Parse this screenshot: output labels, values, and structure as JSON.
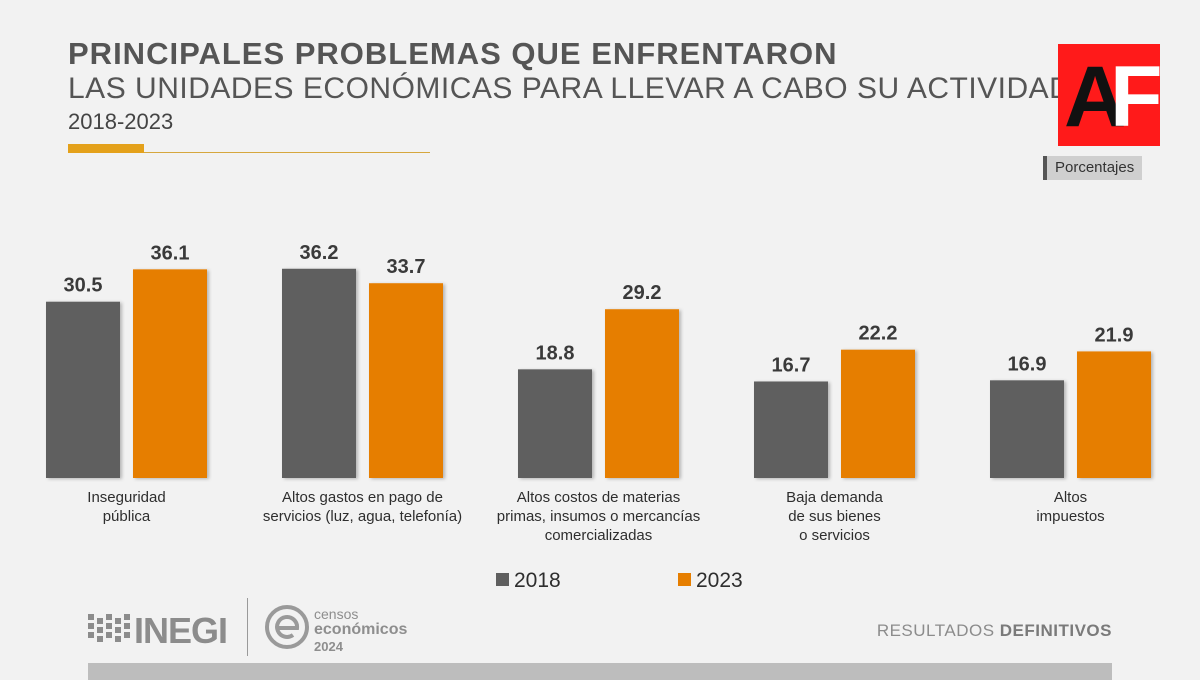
{
  "header": {
    "title_line1": "PRINCIPALES PROBLEMAS QUE ENFRENTARON",
    "title_line2": "LAS UNIDADES ECONÓMICAS PARA LLEVAR A CABO SU ACTIVIDAD",
    "period": "2018-2023",
    "units_label": "Porcentajes"
  },
  "watermark": {
    "text": "AF",
    "colors": {
      "background": "#ff1a1a",
      "a": "#111111",
      "f": "#ffffff"
    }
  },
  "chart_data": {
    "type": "bar",
    "title": "PRINCIPALES PROBLEMAS QUE ENFRENTARON LAS UNIDADES ECONÓMICAS PARA LLEVAR A CABO SU ACTIVIDAD",
    "subtitle": "2018-2023",
    "ylabel": "Porcentajes",
    "ylim": [
      0,
      40
    ],
    "grid": false,
    "legend": "bottom",
    "categories": [
      [
        "Inseguridad",
        "pública"
      ],
      [
        "Altos gastos en pago de",
        "servicios (luz, agua, telefonía)"
      ],
      [
        "Altos costos de materias",
        "primas, insumos o mercancías",
        "comercializadas"
      ],
      [
        "Baja demanda",
        "de sus bienes",
        "o servicios"
      ],
      [
        "Altos",
        "impuestos"
      ]
    ],
    "series": [
      {
        "name": "2018",
        "color": "#5f5f5f",
        "values": [
          30.5,
          36.2,
          18.8,
          16.7,
          16.9
        ]
      },
      {
        "name": "2023",
        "color": "#e67e00",
        "values": [
          36.1,
          33.7,
          29.2,
          22.2,
          21.9
        ]
      }
    ],
    "value_label_color": "#3a3a3a"
  },
  "footer": {
    "inegi_logo": "INEGI",
    "censos_line1": "censos",
    "censos_line2": "económicos",
    "censos_line3": "2024",
    "results_normal": "RESULTADOS ",
    "results_bold": "DEFINITIVOS"
  },
  "colors": {
    "accent": "#e4a11b",
    "background": "#f2f2f2",
    "text": "#555555"
  }
}
